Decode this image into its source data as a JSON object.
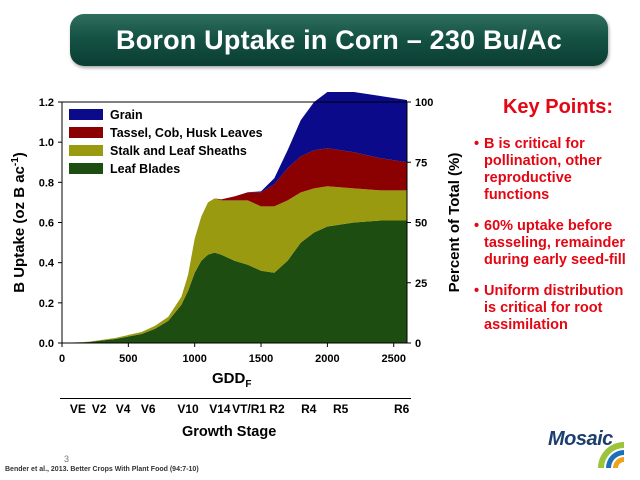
{
  "slide": {
    "title": "Boron Uptake in Corn – 230 Bu/Ac",
    "page_number": "3",
    "citation": "Bender et al., 2013. Better Crops With Plant Food (94:7-10)",
    "logo_text": "Mosaic"
  },
  "key_points": {
    "title": "Key Points:",
    "items": [
      "B is critical for pollination, other reproductive functions",
      "60% uptake before tasseling, remainder during early seed-fill",
      "Uniform distribution is critical for root assimilation"
    ]
  },
  "growth_stage": {
    "axis_title": "Growth Stage",
    "stages": [
      {
        "label": "VE",
        "gdd": 120
      },
      {
        "label": "V2",
        "gdd": 280
      },
      {
        "label": "V4",
        "gdd": 460
      },
      {
        "label": "V6",
        "gdd": 650
      },
      {
        "label": "V10",
        "gdd": 950
      },
      {
        "label": "V14",
        "gdd": 1190
      },
      {
        "label": "VT/R1",
        "gdd": 1410
      },
      {
        "label": "R2",
        "gdd": 1620
      },
      {
        "label": "R4",
        "gdd": 1860
      },
      {
        "label": "R5",
        "gdd": 2100
      },
      {
        "label": "R6",
        "gdd": 2560
      }
    ]
  },
  "chart_data": {
    "type": "area",
    "stacked": true,
    "title": "",
    "xlabel": "GDD",
    "xlabel_subscript": "F",
    "ylabel": "B Uptake (oz B ac",
    "ylabel_superscript": "-1",
    "ylabel_close": ")",
    "y2label": "Percent of Total (%)",
    "xlim": [
      0,
      2600
    ],
    "ylim": [
      0,
      1.2
    ],
    "y2lim": [
      0,
      100
    ],
    "x_ticks": [
      0,
      500,
      1000,
      1500,
      2000,
      2500
    ],
    "y_ticks": [
      "0.0",
      "0.2",
      "0.4",
      "0.6",
      "0.8",
      "1.0",
      "1.2"
    ],
    "y2_ticks": [
      "0",
      "25",
      "50",
      "75",
      "100"
    ],
    "legend_position": "top-left",
    "x": [
      0,
      200,
      400,
      600,
      700,
      800,
      900,
      950,
      1000,
      1050,
      1100,
      1150,
      1200,
      1300,
      1400,
      1500,
      1600,
      1700,
      1800,
      1900,
      2000,
      2200,
      2400,
      2600
    ],
    "series": [
      {
        "name": "Leaf Blades",
        "color": "#1e4d12",
        "values": [
          0,
          0.005,
          0.02,
          0.045,
          0.07,
          0.11,
          0.19,
          0.26,
          0.35,
          0.41,
          0.44,
          0.45,
          0.44,
          0.41,
          0.39,
          0.36,
          0.35,
          0.41,
          0.5,
          0.55,
          0.58,
          0.6,
          0.61,
          0.61
        ]
      },
      {
        "name": "Stalk and Leaf Sheaths",
        "color": "#9a9a10",
        "values": [
          0,
          0.001,
          0.005,
          0.01,
          0.015,
          0.02,
          0.04,
          0.08,
          0.17,
          0.22,
          0.26,
          0.27,
          0.27,
          0.3,
          0.32,
          0.32,
          0.33,
          0.3,
          0.25,
          0.22,
          0.2,
          0.17,
          0.15,
          0.15
        ]
      },
      {
        "name": "Tassel, Cob, Husk Leaves",
        "color": "#8b0000",
        "values": [
          0,
          0,
          0,
          0,
          0,
          0,
          0,
          0,
          0,
          0,
          0,
          0,
          0.005,
          0.02,
          0.04,
          0.07,
          0.11,
          0.16,
          0.18,
          0.19,
          0.19,
          0.18,
          0.16,
          0.14
        ]
      },
      {
        "name": "Grain",
        "color": "#0a0a8a",
        "values": [
          0,
          0,
          0,
          0,
          0,
          0,
          0,
          0,
          0,
          0,
          0,
          0,
          0,
          0,
          0.001,
          0.005,
          0.03,
          0.09,
          0.18,
          0.24,
          0.28,
          0.3,
          0.31,
          0.31
        ]
      }
    ]
  }
}
